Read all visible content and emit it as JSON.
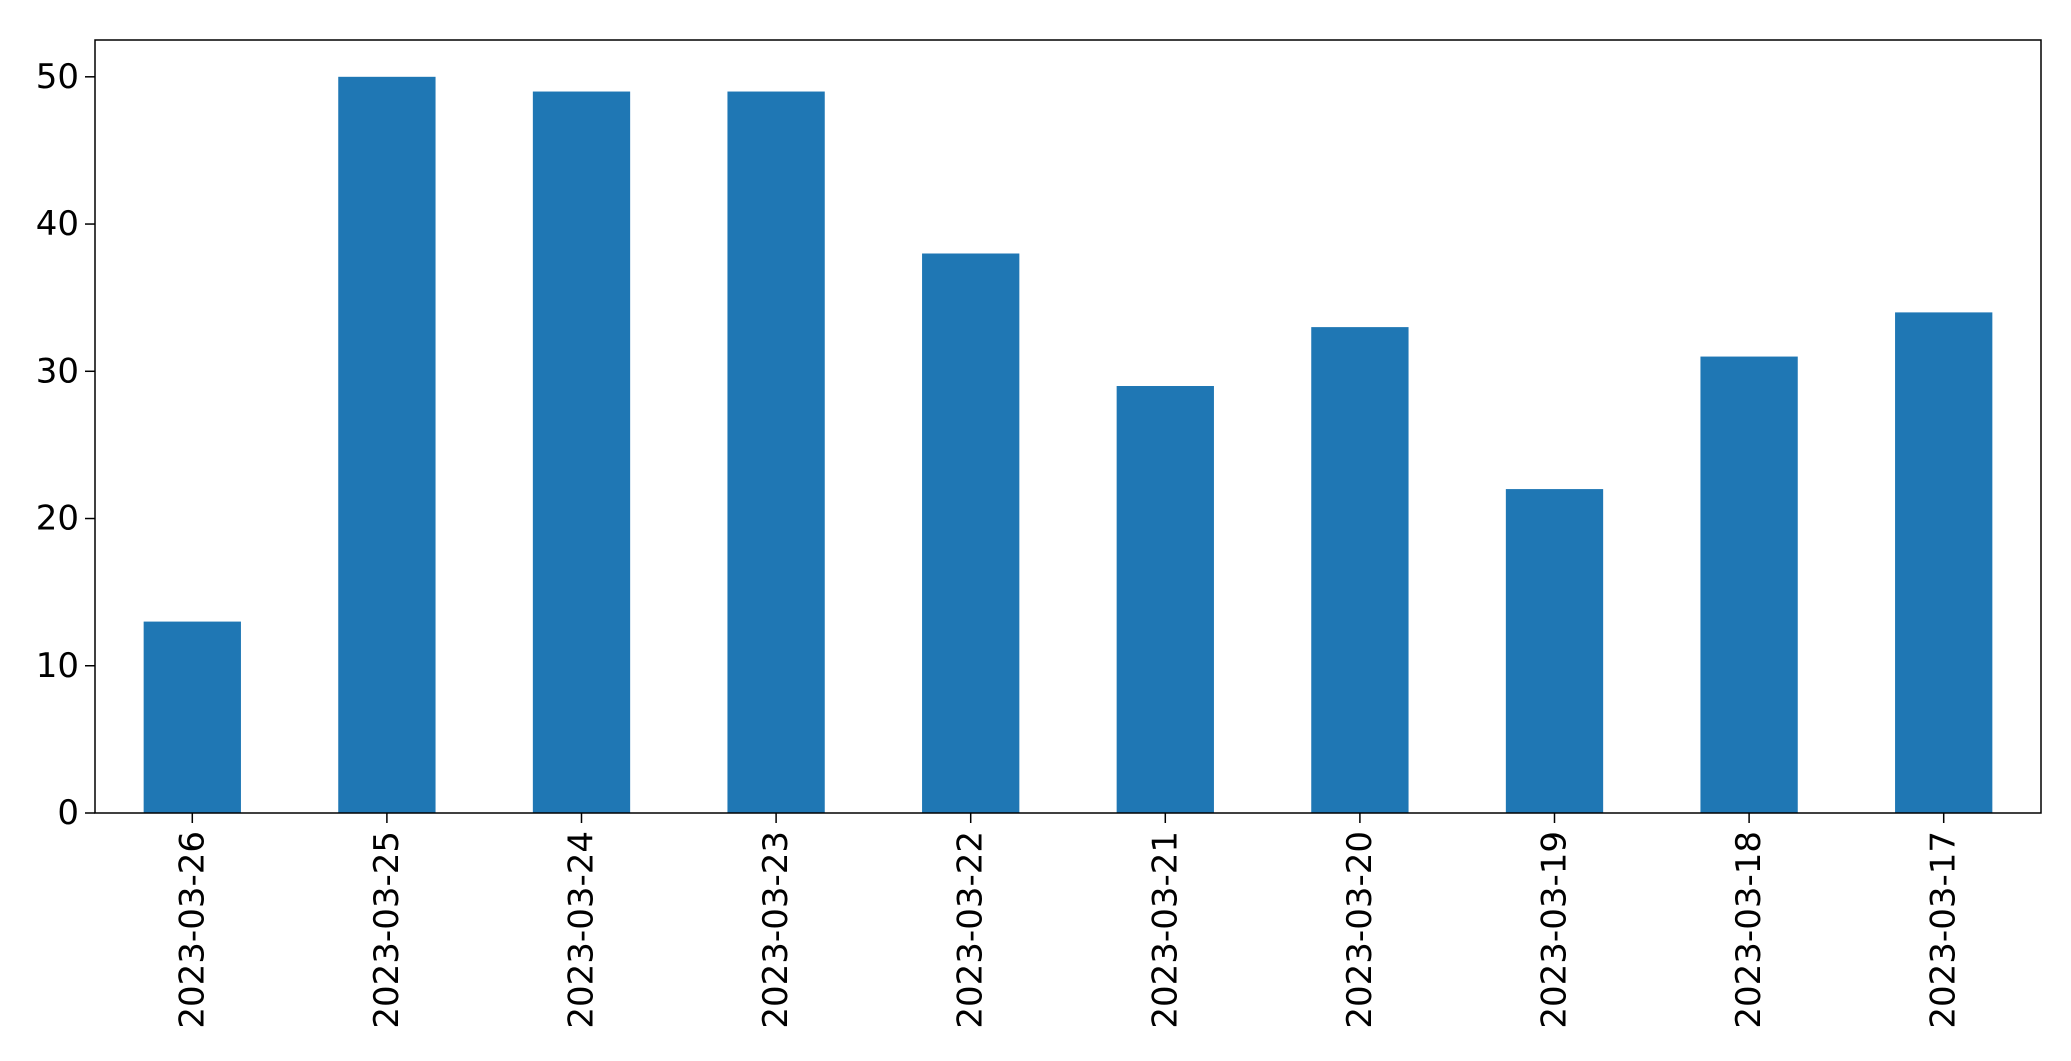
{
  "chart_data": {
    "type": "bar",
    "title": "",
    "xlabel": "",
    "ylabel": "",
    "categories": [
      "2023-03-26",
      "2023-03-25",
      "2023-03-24",
      "2023-03-23",
      "2023-03-22",
      "2023-03-21",
      "2023-03-20",
      "2023-03-19",
      "2023-03-18",
      "2023-03-17"
    ],
    "values": [
      13,
      50,
      49,
      49,
      38,
      29,
      33,
      22,
      31,
      34
    ],
    "ylim": [
      0,
      52.5
    ],
    "yticks": [
      0,
      10,
      20,
      30,
      40,
      50
    ],
    "ytick_labels": [
      "0",
      "10",
      "20",
      "30",
      "40",
      "50"
    ],
    "bar_color": "#1f77b4",
    "grid": false,
    "legend": "none"
  }
}
